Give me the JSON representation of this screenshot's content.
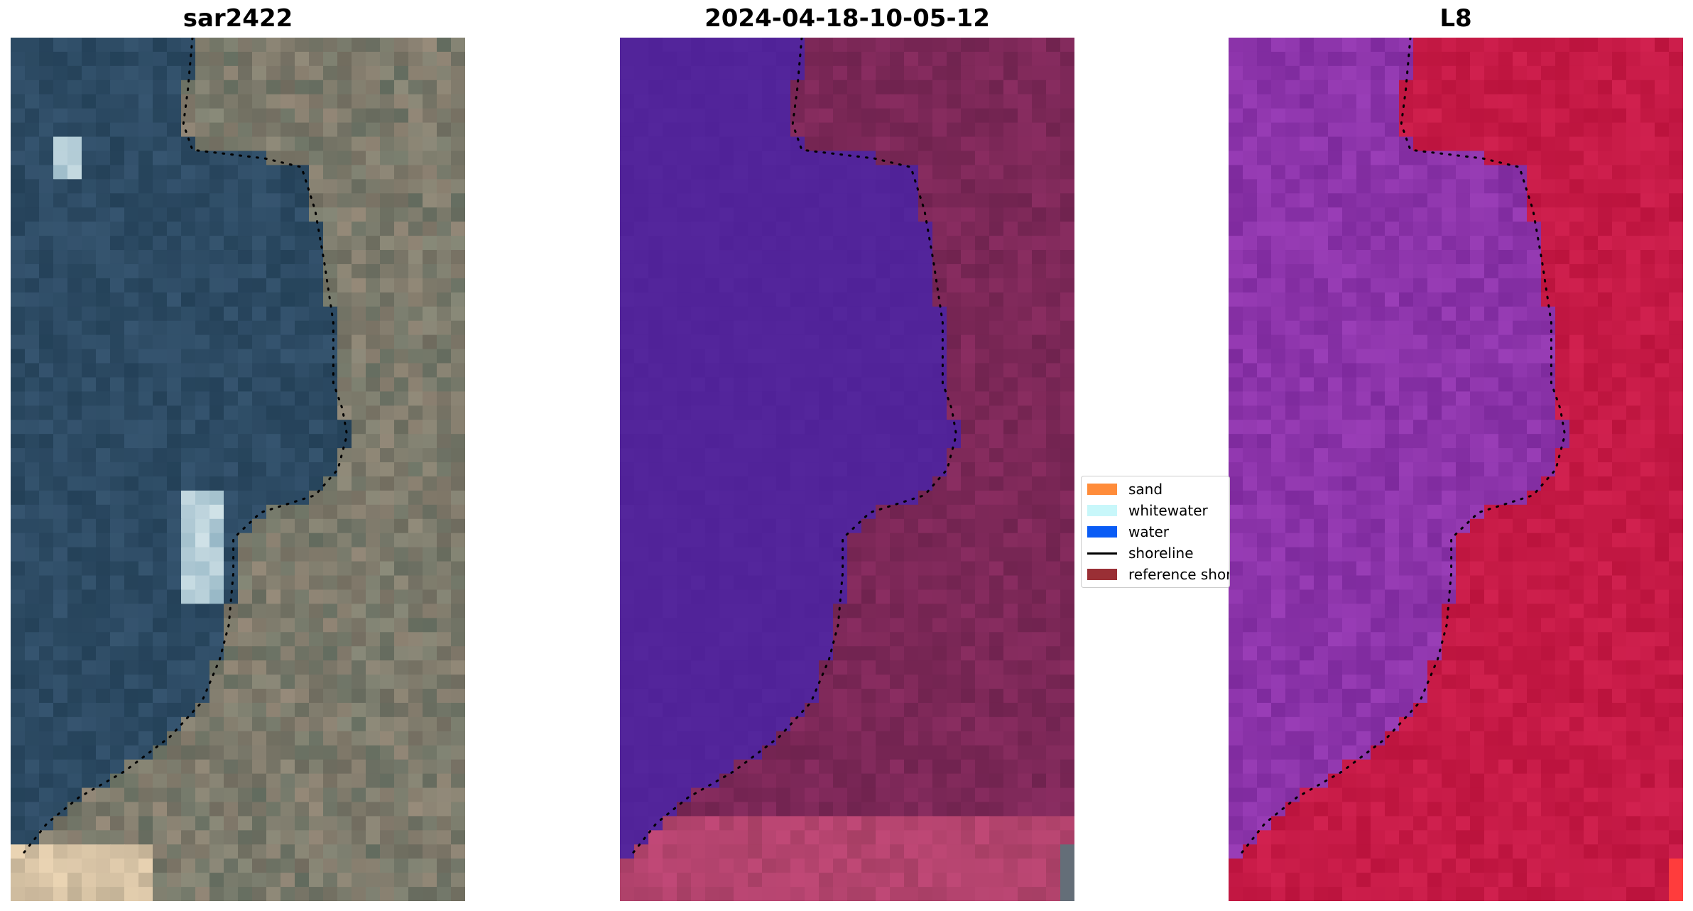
{
  "panels": [
    {
      "title": "sar2422",
      "style": "rgb"
    },
    {
      "title": "2024-04-18-10-05-12",
      "style": "classified"
    },
    {
      "title": "L8",
      "style": "ndwi"
    }
  ],
  "legend": {
    "items": [
      {
        "label": "sand",
        "kind": "patch",
        "color": "#ff8c3a"
      },
      {
        "label": "whitewater",
        "kind": "patch",
        "color": "#c8f7fa"
      },
      {
        "label": "water",
        "kind": "patch",
        "color": "#0a5cf5"
      },
      {
        "label": "shoreline",
        "kind": "line",
        "color": "#000000"
      },
      {
        "label": "reference shoreline",
        "kind": "patch",
        "color": "#9a2f35"
      }
    ]
  },
  "colors": {
    "water_class": "#52249a",
    "land_class": "#7d2758",
    "land_red": "#c81a44",
    "water_purple": "#8a35a8"
  }
}
